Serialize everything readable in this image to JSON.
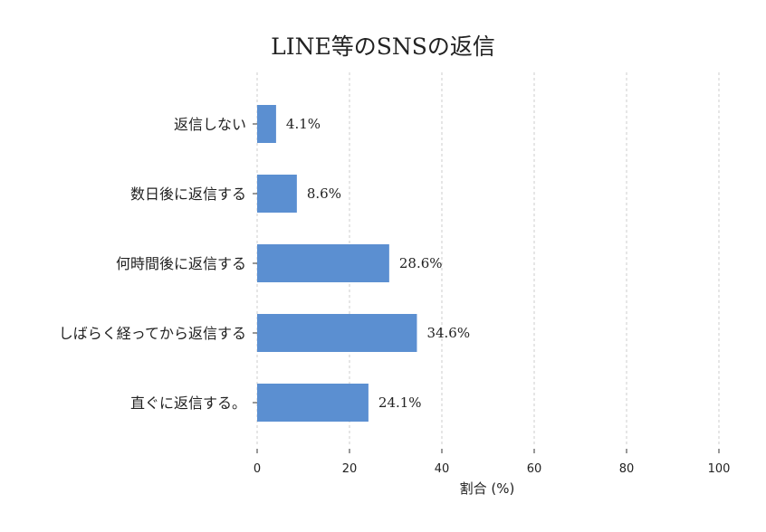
{
  "chart_data": {
    "type": "bar",
    "orientation": "horizontal",
    "title": "LINE等のSNSの返信",
    "xlabel": "割合 (%)",
    "ylabel": "",
    "categories": [
      "返信しない",
      "数日後に返信する",
      "何時間後に返信する",
      "しばらく経ってから返信する",
      "直ぐに返信する。"
    ],
    "values": [
      4.1,
      8.6,
      28.6,
      34.6,
      24.1
    ],
    "value_labels": [
      "4.1%",
      "8.6%",
      "28.6%",
      "34.6%",
      "24.1%"
    ],
    "xlim": [
      0,
      100
    ],
    "xticks": [
      0,
      20,
      40,
      60,
      80,
      100
    ],
    "grid": "x-dashed",
    "color": "#5b8fd1"
  }
}
